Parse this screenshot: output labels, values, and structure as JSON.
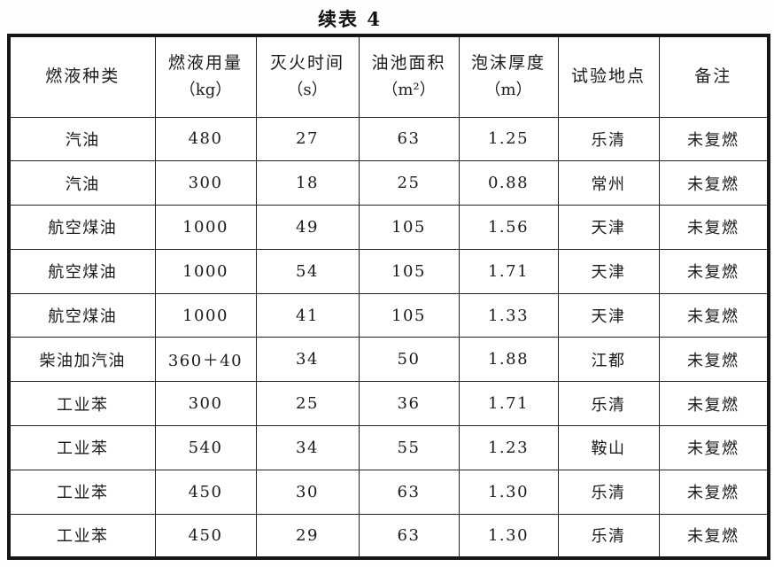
{
  "title": "续表 4",
  "table": {
    "columns": [
      {
        "label": "燃液种类",
        "unit": ""
      },
      {
        "label": "燃液用量",
        "unit": "（kg）"
      },
      {
        "label": "灭火时间",
        "unit": "（s）"
      },
      {
        "label": "油池面积",
        "unit": "（m²）"
      },
      {
        "label": "泡沫厚度",
        "unit": "（m）"
      },
      {
        "label": "试验地点",
        "unit": ""
      },
      {
        "label": "备注",
        "unit": ""
      }
    ],
    "rows": [
      [
        "汽油",
        "480",
        "27",
        "63",
        "1.25",
        "乐清",
        "未复燃"
      ],
      [
        "汽油",
        "300",
        "18",
        "25",
        "0.88",
        "常州",
        "未复燃"
      ],
      [
        "航空煤油",
        "1000",
        "49",
        "105",
        "1.56",
        "天津",
        "未复燃"
      ],
      [
        "航空煤油",
        "1000",
        "54",
        "105",
        "1.71",
        "天津",
        "未复燃"
      ],
      [
        "航空煤油",
        "1000",
        "41",
        "105",
        "1.33",
        "天津",
        "未复燃"
      ],
      [
        "柴油加汽油",
        "360＋40",
        "34",
        "50",
        "1.88",
        "江都",
        "未复燃"
      ],
      [
        "工业苯",
        "300",
        "25",
        "36",
        "1.71",
        "乐清",
        "未复燃"
      ],
      [
        "工业苯",
        "540",
        "34",
        "55",
        "1.23",
        "鞍山",
        "未复燃"
      ],
      [
        "工业苯",
        "450",
        "30",
        "63",
        "1.30",
        "乐清",
        "未复燃"
      ],
      [
        "工业苯",
        "450",
        "29",
        "63",
        "1.30",
        "乐清",
        "未复燃"
      ]
    ]
  }
}
